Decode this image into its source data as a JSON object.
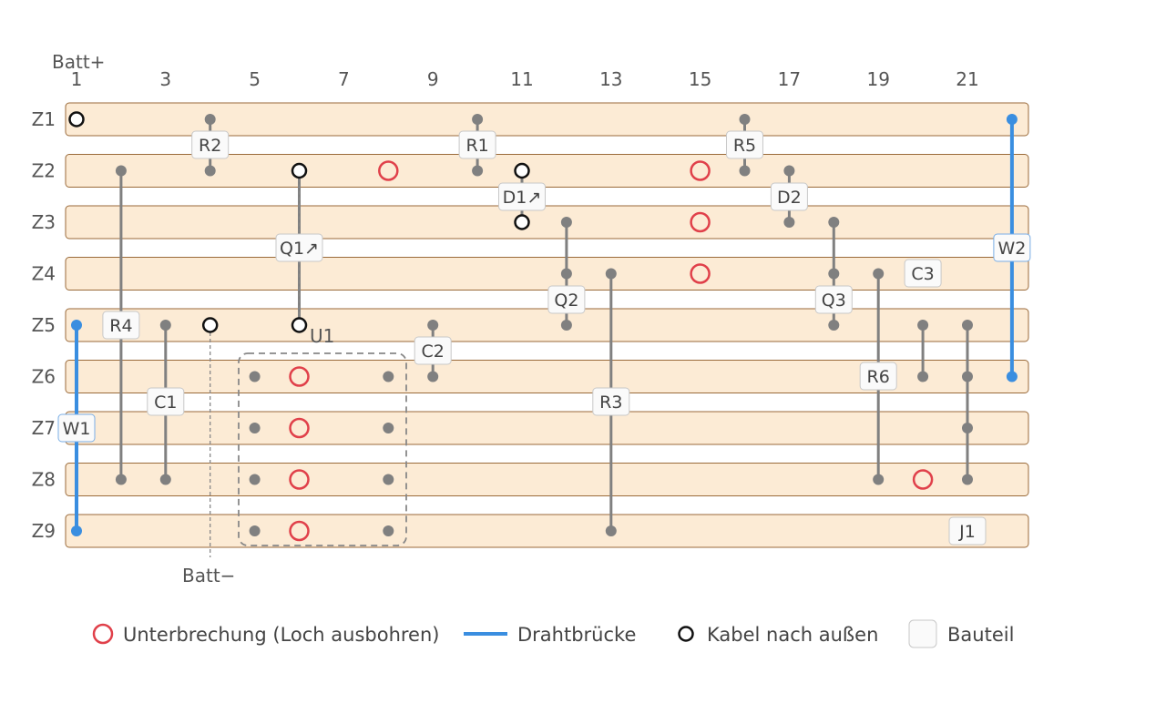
{
  "columns": [
    "1",
    "3",
    "5",
    "7",
    "9",
    "11",
    "13",
    "15",
    "17",
    "19",
    "21"
  ],
  "rows": [
    "Z1",
    "Z2",
    "Z3",
    "Z4",
    "Z5",
    "Z6",
    "Z7",
    "Z8",
    "Z9"
  ],
  "terminals": {
    "positive": "Batt+",
    "negative": "Batt−"
  },
  "colors": {
    "strip_fill": "#fcebd5",
    "strip_border": "#9a6a3a",
    "cut": "#e0404a",
    "jumper": "#3a8ee0",
    "lead": "#808080",
    "wire": "#111111"
  },
  "parts": [
    {
      "id": "R2",
      "label": "R2",
      "col": 4,
      "from": 1,
      "to": 2
    },
    {
      "id": "R1",
      "label": "R1",
      "col": 10,
      "from": 1,
      "to": 2
    },
    {
      "id": "R5",
      "label": "R5",
      "col": 16,
      "from": 1,
      "to": 2
    },
    {
      "id": "D1",
      "label": "D1↗",
      "col": 11,
      "from": 2,
      "to": 3
    },
    {
      "id": "D2",
      "label": "D2",
      "col": 17,
      "from": 2,
      "to": 3
    },
    {
      "id": "Q1",
      "label": "Q1↗",
      "col": 6,
      "from": 2,
      "to": 5
    },
    {
      "id": "C3",
      "label": "C3",
      "col": 20,
      "from": 4,
      "to": 4
    },
    {
      "id": "Q2",
      "label": "Q2",
      "col": 12,
      "from": 3,
      "to": 5
    },
    {
      "id": "Q3",
      "label": "Q3",
      "col": 18,
      "from": 3,
      "to": 5
    },
    {
      "id": "R4",
      "label": "R4",
      "col": 2,
      "from": 2,
      "to": 8
    },
    {
      "id": "C2",
      "label": "C2",
      "col": 9,
      "from": 5,
      "to": 6
    },
    {
      "id": "C1",
      "label": "C1",
      "col": 3,
      "from": 5,
      "to": 8
    },
    {
      "id": "R3",
      "label": "R3",
      "col": 13,
      "from": 4,
      "to": 9
    },
    {
      "id": "R6",
      "label": "R6",
      "col": 19,
      "from": 4,
      "to": 8
    },
    {
      "id": "J1",
      "label": "J1",
      "col": 21,
      "from": 9,
      "to": 9
    }
  ],
  "jumpers": [
    {
      "id": "W1",
      "label": "W1",
      "col": 1,
      "from": 5,
      "to": 9
    },
    {
      "id": "W2",
      "label": "W2",
      "col": 22,
      "from": 1,
      "to": 6
    }
  ],
  "ic": {
    "label": "U1"
  },
  "legend": {
    "cut": "Unterbrechung (Loch ausbohren)",
    "jumper": "Drahtbrücke",
    "wire": "Kabel nach außen",
    "part": "Bauteil"
  }
}
